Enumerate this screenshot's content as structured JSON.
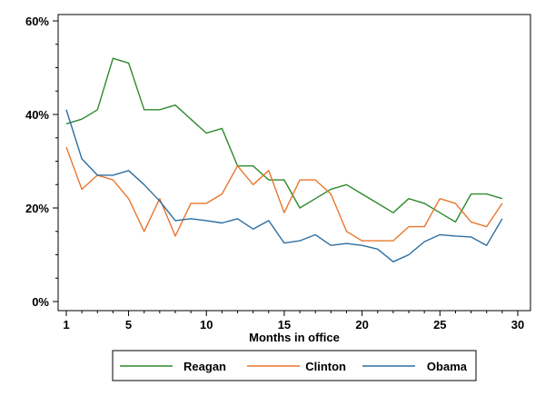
{
  "chart_data": {
    "type": "line",
    "xlabel": "Months in office",
    "ylabel": "",
    "xlim": [
      1,
      30
    ],
    "ylim": [
      0,
      60
    ],
    "xticks": [
      1,
      5,
      10,
      15,
      20,
      25,
      30
    ],
    "yticks": [
      0,
      20,
      40,
      60
    ],
    "ytick_labels": [
      "0%",
      "20%",
      "40%",
      "60%"
    ],
    "grid": false,
    "legend_position": "bottom",
    "x": [
      1,
      2,
      3,
      4,
      5,
      6,
      7,
      8,
      9,
      10,
      11,
      12,
      13,
      14,
      15,
      16,
      17,
      18,
      19,
      20,
      21,
      22,
      23,
      24,
      25,
      26,
      27,
      28,
      29
    ],
    "series": [
      {
        "name": "Reagan",
        "color": "#2e8a2e",
        "values": [
          38,
          39,
          41,
          52,
          51,
          41,
          41,
          42,
          39,
          36,
          37,
          29,
          29,
          26,
          26,
          20,
          22,
          24,
          25,
          23,
          21,
          19,
          22,
          21,
          19,
          17,
          23,
          23,
          22
        ]
      },
      {
        "name": "Clinton",
        "color": "#e8772e",
        "values": [
          33,
          24,
          27,
          26,
          22,
          15,
          22,
          14,
          21,
          21,
          23,
          29,
          25,
          28,
          19,
          26,
          26,
          23,
          15,
          13,
          13,
          13,
          16,
          16,
          22,
          21,
          17,
          16,
          21
        ]
      },
      {
        "name": "Obama",
        "color": "#2c6ea0",
        "values": [
          41,
          30.5,
          27,
          27,
          28,
          25,
          21.5,
          17.3,
          17.7,
          17.3,
          16.8,
          17.7,
          15.5,
          17.3,
          12.5,
          13,
          14.3,
          12,
          12.4,
          12,
          11.2,
          8.5,
          10,
          12.8,
          14.3,
          14,
          13.8,
          12,
          17.7
        ]
      }
    ]
  }
}
